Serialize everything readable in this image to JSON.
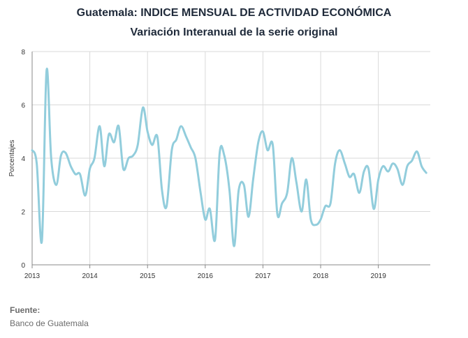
{
  "header": {
    "title": "Guatemala: INDICE MENSUAL DE ACTIVIDAD ECONÓMICA",
    "subtitle": "Variación Interanual de la serie original"
  },
  "source": {
    "label": "Fuente:",
    "text": "Banco de Guatemala"
  },
  "chart_data": {
    "type": "line",
    "ylabel": "Porcentajes",
    "xlabel": "",
    "ylim": [
      0,
      8
    ],
    "yticks": [
      0,
      2,
      4,
      6,
      8
    ],
    "xlim": [
      2013.0,
      2019.9
    ],
    "xticks": [
      2013,
      2014,
      2015,
      2016,
      2017,
      2018,
      2019
    ],
    "xtick_labels": [
      "2013",
      "2014",
      "2015",
      "2016",
      "2017",
      "2018",
      "2019"
    ],
    "grid": true,
    "line_color": "#92cddc",
    "series": [
      {
        "x": [
          2013.0,
          2013.08,
          2013.17,
          2013.25,
          2013.33,
          2013.42,
          2013.5,
          2013.58,
          2013.67,
          2013.75,
          2013.83,
          2013.92,
          2014.0,
          2014.08,
          2014.17,
          2014.25,
          2014.33,
          2014.42,
          2014.5,
          2014.58,
          2014.67,
          2014.75,
          2014.83,
          2014.92,
          2015.0,
          2015.08,
          2015.17,
          2015.25,
          2015.33,
          2015.42,
          2015.5,
          2015.58,
          2015.67,
          2015.75,
          2015.83,
          2015.92,
          2016.0,
          2016.08,
          2016.17,
          2016.25,
          2016.33,
          2016.42,
          2016.5,
          2016.58,
          2016.67,
          2016.75,
          2016.83,
          2016.92,
          2017.0,
          2017.08,
          2017.17,
          2017.25,
          2017.33,
          2017.42,
          2017.5,
          2017.58,
          2017.67,
          2017.75,
          2017.83,
          2017.92,
          2018.0,
          2018.08,
          2018.17,
          2018.25,
          2018.33,
          2018.42,
          2018.5,
          2018.58,
          2018.67,
          2018.75,
          2018.83,
          2018.92,
          2019.0,
          2019.08,
          2019.17,
          2019.25,
          2019.33,
          2019.42,
          2019.5,
          2019.58,
          2019.67,
          2019.75,
          2019.83
        ],
        "values": [
          4.3,
          3.8,
          0.9,
          7.3,
          4.0,
          3.0,
          4.1,
          4.2,
          3.7,
          3.4,
          3.4,
          2.6,
          3.6,
          4.0,
          5.2,
          3.7,
          4.9,
          4.6,
          5.2,
          3.6,
          4.0,
          4.1,
          4.5,
          5.9,
          5.0,
          4.5,
          4.8,
          2.8,
          2.2,
          4.3,
          4.7,
          5.2,
          4.8,
          4.4,
          4.0,
          2.7,
          1.7,
          2.1,
          0.95,
          4.2,
          4.1,
          2.8,
          0.7,
          2.8,
          3.0,
          1.8,
          3.2,
          4.6,
          5.0,
          4.3,
          4.5,
          1.9,
          2.3,
          2.7,
          4.0,
          3.1,
          2.0,
          3.2,
          1.7,
          1.5,
          1.7,
          2.2,
          2.3,
          3.8,
          4.3,
          3.8,
          3.3,
          3.4,
          2.7,
          3.5,
          3.6,
          2.1,
          3.2,
          3.7,
          3.5,
          3.8,
          3.6,
          3.0,
          3.7,
          3.9,
          4.25,
          3.7,
          3.45
        ]
      }
    ]
  }
}
